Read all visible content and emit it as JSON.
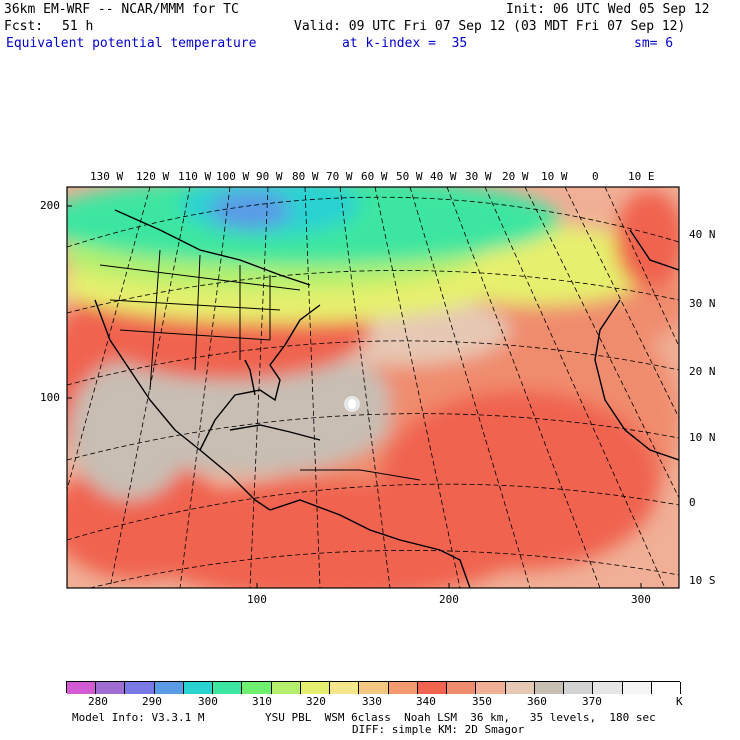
{
  "header": {
    "model": "36km EM-WRF -- NCAR/MMM for TC",
    "init": "Init: 06 UTC Wed 05 Sep 12",
    "fcst_label": "Fcst:",
    "fcst_value": "51 h",
    "valid": "Valid: 09 UTC Fri 07 Sep 12 (03 MDT Fri 07 Sep 12)",
    "field": "Equivalent potential temperature",
    "level": "at k-index =  35",
    "smoothing": "sm= 6"
  },
  "map": {
    "lon_labels": [
      "130 W",
      "120 W",
      "110 W",
      "100 W",
      "90 W",
      "80 W",
      "70 W",
      "60 W",
      "50 W",
      "40 W",
      "30 W",
      "20 W",
      "10 W",
      "0",
      "10 E"
    ],
    "lat_labels": [
      "40 N",
      "30 N",
      "20 N",
      "10 N",
      "0",
      "10 S"
    ],
    "y_grid_labels": [
      "200",
      "100"
    ],
    "x_grid_labels": [
      "100",
      "200",
      "300"
    ],
    "colors": {
      "border": "#000000",
      "land_line": "#000000",
      "graticule": "#000000"
    }
  },
  "colorbar": {
    "labels": [
      "280",
      "290",
      "300",
      "310",
      "320",
      "330",
      "340",
      "350",
      "360",
      "370"
    ],
    "unit": "K",
    "colors": [
      "#d25ad2",
      "#a06ed2",
      "#7a7ae6",
      "#5a9be6",
      "#2ad2d2",
      "#3ce6a0",
      "#6ef06e",
      "#b4f06e",
      "#e6f06e",
      "#f5e68c",
      "#f5c882",
      "#f59a6e",
      "#f06450",
      "#f08c6e",
      "#f0af96",
      "#e6c8b4",
      "#c8beb4",
      "#d2d2d2",
      "#e6e6e6",
      "#f5f5f5",
      "#ffffff"
    ]
  },
  "footer": {
    "model_info": "Model Info: V3.3.1 M",
    "physics": "YSU PBL  WSM 6class  Noah LSM  36 km,   35 levels,  180 sec",
    "diffusion": "DIFF: simple KM: 2D Smagor"
  }
}
